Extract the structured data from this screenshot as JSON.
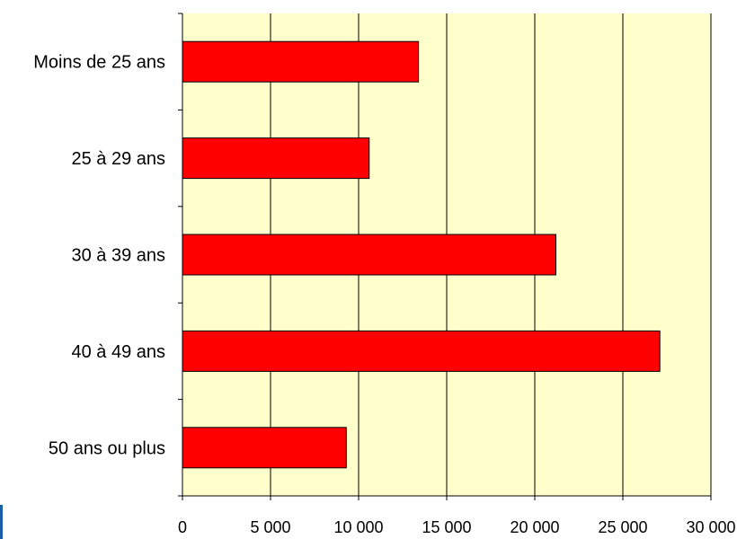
{
  "chart_data": {
    "type": "bar",
    "orientation": "horizontal",
    "categories": [
      "Moins de 25 ans",
      "25 à 29 ans",
      "30 à 39 ans",
      "40 à 49 ans",
      "50 ans ou plus"
    ],
    "values": [
      13400,
      10600,
      21200,
      27100,
      9300
    ],
    "title": "",
    "xlabel": "",
    "ylabel": "",
    "xlim": [
      0,
      30000
    ],
    "x_ticks": [
      0,
      5000,
      10000,
      15000,
      20000,
      25000,
      30000
    ],
    "x_tick_labels": [
      "0",
      "5 000",
      "10 000",
      "15 000",
      "20 000",
      "25 000",
      "30 000"
    ],
    "grid": "vertical",
    "legend": "none",
    "colors": {
      "bar_fill": "#ff0000",
      "bar_stroke": "#000000",
      "plot_background": "#ffffcc",
      "gridline": "#000000",
      "accent": "#1a5fa8"
    }
  }
}
